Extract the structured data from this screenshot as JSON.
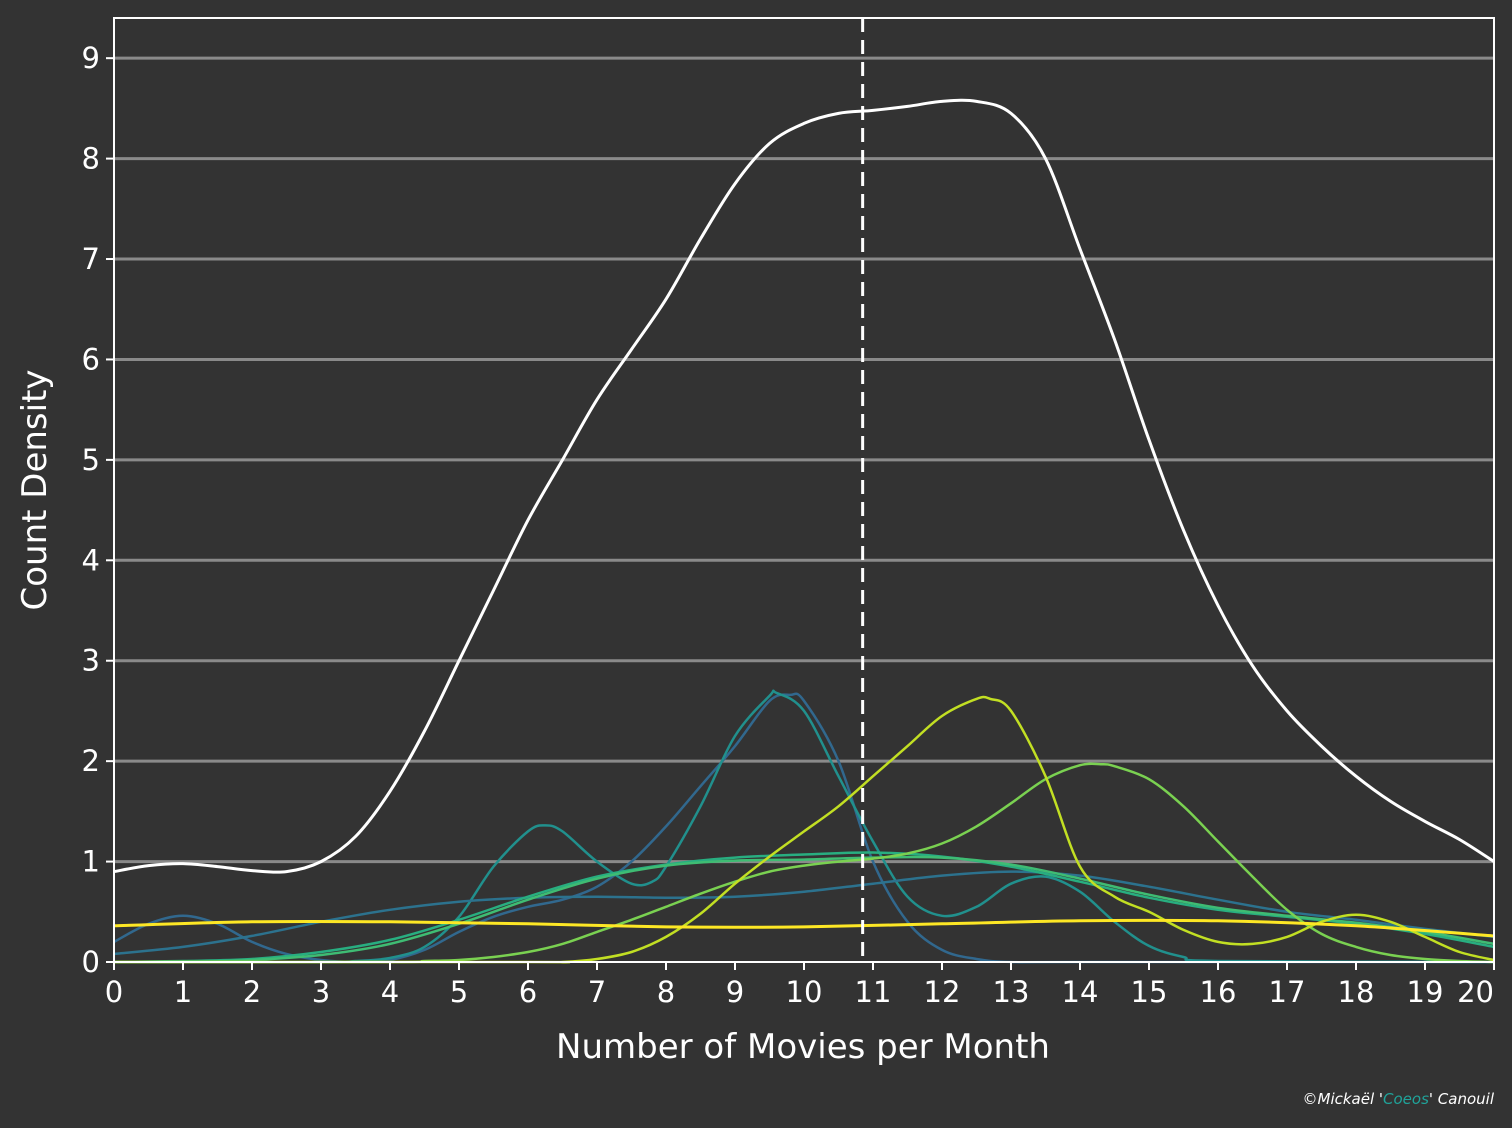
{
  "colors": {
    "background": "#333333",
    "grid": "#8a8a8a",
    "frame": "#ffffff",
    "accent": "#20a39a"
  },
  "credit": {
    "prefix": "©Mickaël '",
    "name": "Coeos",
    "suffix": "' Canouil"
  },
  "chart_data": {
    "type": "line",
    "title": "",
    "xlabel": "Number of Movies per Month",
    "ylabel": "Count Density",
    "xlim": [
      0,
      20
    ],
    "ylim": [
      0,
      9.4
    ],
    "xticks": [
      0,
      1,
      2,
      3,
      4,
      5,
      6,
      7,
      8,
      9,
      10,
      11,
      12,
      13,
      14,
      15,
      16,
      17,
      18,
      19,
      20
    ],
    "yticks": [
      0,
      1,
      2,
      3,
      4,
      5,
      6,
      7,
      8,
      9
    ],
    "grid": "horizontal",
    "legend": "none",
    "vline": {
      "x": 10.85,
      "style": "dashed",
      "color": "#ffffff"
    },
    "series": [
      {
        "color": "#ffffff",
        "width": 3,
        "points": [
          [
            0,
            0.9
          ],
          [
            0.5,
            0.96
          ],
          [
            1,
            0.98
          ],
          [
            1.5,
            0.95
          ],
          [
            2,
            0.91
          ],
          [
            2.5,
            0.9
          ],
          [
            3,
            1.0
          ],
          [
            3.5,
            1.25
          ],
          [
            4,
            1.7
          ],
          [
            4.5,
            2.3
          ],
          [
            5,
            3.0
          ],
          [
            5.5,
            3.7
          ],
          [
            6,
            4.4
          ],
          [
            6.5,
            5.0
          ],
          [
            7,
            5.6
          ],
          [
            7.5,
            6.1
          ],
          [
            8,
            6.6
          ],
          [
            8.5,
            7.2
          ],
          [
            9,
            7.75
          ],
          [
            9.5,
            8.15
          ],
          [
            10,
            8.35
          ],
          [
            10.5,
            8.45
          ],
          [
            11,
            8.48
          ],
          [
            11.5,
            8.52
          ],
          [
            12,
            8.57
          ],
          [
            12.5,
            8.57
          ],
          [
            13,
            8.45
          ],
          [
            13.5,
            8.0
          ],
          [
            14,
            7.1
          ],
          [
            14.5,
            6.2
          ],
          [
            15,
            5.2
          ],
          [
            15.5,
            4.3
          ],
          [
            16,
            3.55
          ],
          [
            16.5,
            2.95
          ],
          [
            17,
            2.5
          ],
          [
            17.5,
            2.15
          ],
          [
            18,
            1.85
          ],
          [
            18.5,
            1.6
          ],
          [
            19,
            1.4
          ],
          [
            19.5,
            1.22
          ],
          [
            20,
            1.0
          ]
        ]
      },
      {
        "color": "#31688e",
        "width": 2.5,
        "points": [
          [
            0,
            0.2
          ],
          [
            0.5,
            0.38
          ],
          [
            1,
            0.46
          ],
          [
            1.5,
            0.38
          ],
          [
            2,
            0.2
          ],
          [
            2.5,
            0.08
          ],
          [
            3,
            0.02
          ],
          [
            3.5,
            0.0
          ],
          [
            4,
            0.02
          ],
          [
            4.5,
            0.12
          ],
          [
            5,
            0.3
          ],
          [
            5.5,
            0.45
          ],
          [
            6,
            0.55
          ],
          [
            6.5,
            0.62
          ],
          [
            7,
            0.75
          ],
          [
            7.5,
            1.0
          ],
          [
            8,
            1.35
          ],
          [
            8.5,
            1.75
          ],
          [
            9,
            2.15
          ],
          [
            9.5,
            2.6
          ],
          [
            9.8,
            2.66
          ],
          [
            10,
            2.6
          ],
          [
            10.5,
            2.0
          ],
          [
            11,
            1.0
          ],
          [
            11.5,
            0.4
          ],
          [
            12,
            0.12
          ],
          [
            12.5,
            0.03
          ],
          [
            13,
            0.0
          ],
          [
            14,
            0.0
          ],
          [
            20,
            0.0
          ]
        ]
      },
      {
        "color": "#21908d",
        "width": 2.5,
        "points": [
          [
            0,
            0.0
          ],
          [
            3,
            0.0
          ],
          [
            3.5,
            0.01
          ],
          [
            4,
            0.04
          ],
          [
            4.5,
            0.15
          ],
          [
            5,
            0.45
          ],
          [
            5.5,
            0.95
          ],
          [
            6,
            1.3
          ],
          [
            6.25,
            1.36
          ],
          [
            6.5,
            1.3
          ],
          [
            7,
            1.0
          ],
          [
            7.5,
            0.78
          ],
          [
            7.8,
            0.8
          ],
          [
            8,
            0.95
          ],
          [
            8.5,
            1.55
          ],
          [
            9,
            2.25
          ],
          [
            9.5,
            2.65
          ],
          [
            9.6,
            2.68
          ],
          [
            10,
            2.5
          ],
          [
            10.5,
            1.85
          ],
          [
            11,
            1.2
          ],
          [
            11.5,
            0.65
          ],
          [
            12,
            0.46
          ],
          [
            12.5,
            0.55
          ],
          [
            13,
            0.78
          ],
          [
            13.5,
            0.85
          ],
          [
            14,
            0.7
          ],
          [
            14.5,
            0.4
          ],
          [
            15,
            0.16
          ],
          [
            15.5,
            0.05
          ],
          [
            16,
            0.01
          ],
          [
            20,
            0.0
          ]
        ]
      },
      {
        "color": "#2c728e",
        "width": 2.5,
        "points": [
          [
            0,
            0.08
          ],
          [
            1,
            0.15
          ],
          [
            2,
            0.26
          ],
          [
            3,
            0.4
          ],
          [
            4,
            0.52
          ],
          [
            5,
            0.6
          ],
          [
            6,
            0.64
          ],
          [
            7,
            0.65
          ],
          [
            8,
            0.64
          ],
          [
            9,
            0.65
          ],
          [
            10,
            0.7
          ],
          [
            11,
            0.78
          ],
          [
            12,
            0.86
          ],
          [
            13,
            0.9
          ],
          [
            14,
            0.86
          ],
          [
            15,
            0.75
          ],
          [
            16,
            0.62
          ],
          [
            17,
            0.5
          ],
          [
            18,
            0.42
          ],
          [
            19,
            0.33
          ],
          [
            20,
            0.25
          ]
        ]
      },
      {
        "color": "#28ae80",
        "width": 2.5,
        "points": [
          [
            0,
            0.0
          ],
          [
            1,
            0.01
          ],
          [
            2,
            0.03
          ],
          [
            3,
            0.1
          ],
          [
            4,
            0.22
          ],
          [
            5,
            0.42
          ],
          [
            6,
            0.65
          ],
          [
            7,
            0.85
          ],
          [
            8,
            0.97
          ],
          [
            9,
            1.04
          ],
          [
            10,
            1.07
          ],
          [
            11,
            1.09
          ],
          [
            12,
            1.05
          ],
          [
            13,
            0.95
          ],
          [
            14,
            0.8
          ],
          [
            15,
            0.64
          ],
          [
            16,
            0.52
          ],
          [
            17,
            0.45
          ],
          [
            18,
            0.38
          ],
          [
            19,
            0.28
          ],
          [
            20,
            0.15
          ]
        ]
      },
      {
        "color": "#3fbc73",
        "width": 2.5,
        "points": [
          [
            0,
            0.0
          ],
          [
            1,
            0.0
          ],
          [
            2,
            0.02
          ],
          [
            3,
            0.07
          ],
          [
            4,
            0.18
          ],
          [
            5,
            0.38
          ],
          [
            6,
            0.62
          ],
          [
            7,
            0.83
          ],
          [
            8,
            0.96
          ],
          [
            9,
            1.01
          ],
          [
            10,
            1.02
          ],
          [
            11,
            1.04
          ],
          [
            12,
            1.04
          ],
          [
            13,
            0.97
          ],
          [
            14,
            0.83
          ],
          [
            15,
            0.67
          ],
          [
            16,
            0.54
          ],
          [
            17,
            0.46
          ],
          [
            18,
            0.39
          ],
          [
            19,
            0.3
          ],
          [
            20,
            0.18
          ]
        ]
      },
      {
        "color": "#7ad151",
        "width": 2.5,
        "points": [
          [
            0,
            0.0
          ],
          [
            4,
            0.0
          ],
          [
            4.5,
            0.01
          ],
          [
            5,
            0.02
          ],
          [
            5.5,
            0.05
          ],
          [
            6,
            0.1
          ],
          [
            6.5,
            0.18
          ],
          [
            7,
            0.3
          ],
          [
            7.5,
            0.42
          ],
          [
            8,
            0.55
          ],
          [
            8.5,
            0.68
          ],
          [
            9,
            0.8
          ],
          [
            9.5,
            0.9
          ],
          [
            10,
            0.96
          ],
          [
            10.5,
            1.0
          ],
          [
            11,
            1.03
          ],
          [
            11.5,
            1.08
          ],
          [
            12,
            1.18
          ],
          [
            12.5,
            1.35
          ],
          [
            13,
            1.58
          ],
          [
            13.5,
            1.82
          ],
          [
            14,
            1.96
          ],
          [
            14.3,
            1.97
          ],
          [
            14.5,
            1.95
          ],
          [
            15,
            1.82
          ],
          [
            15.5,
            1.55
          ],
          [
            16,
            1.2
          ],
          [
            16.5,
            0.85
          ],
          [
            17,
            0.52
          ],
          [
            17.5,
            0.28
          ],
          [
            18,
            0.15
          ],
          [
            18.5,
            0.07
          ],
          [
            19,
            0.03
          ],
          [
            19.5,
            0.01
          ],
          [
            20,
            0.0
          ]
        ]
      },
      {
        "color": "#c2df23",
        "width": 2.5,
        "points": [
          [
            0,
            0.0
          ],
          [
            6,
            0.0
          ],
          [
            6.5,
            0.0
          ],
          [
            7,
            0.03
          ],
          [
            7.5,
            0.1
          ],
          [
            8,
            0.25
          ],
          [
            8.5,
            0.48
          ],
          [
            9,
            0.78
          ],
          [
            9.5,
            1.05
          ],
          [
            10,
            1.3
          ],
          [
            10.5,
            1.55
          ],
          [
            11,
            1.85
          ],
          [
            11.5,
            2.15
          ],
          [
            12,
            2.45
          ],
          [
            12.5,
            2.62
          ],
          [
            12.7,
            2.62
          ],
          [
            13,
            2.5
          ],
          [
            13.5,
            1.85
          ],
          [
            14,
            0.95
          ],
          [
            14.5,
            0.65
          ],
          [
            15,
            0.5
          ],
          [
            15.5,
            0.32
          ],
          [
            16,
            0.2
          ],
          [
            16.5,
            0.18
          ],
          [
            17,
            0.25
          ],
          [
            17.5,
            0.4
          ],
          [
            18,
            0.47
          ],
          [
            18.5,
            0.4
          ],
          [
            19,
            0.25
          ],
          [
            19.5,
            0.1
          ],
          [
            20,
            0.02
          ]
        ]
      },
      {
        "color": "#fde725",
        "width": 3,
        "points": [
          [
            0,
            0.36
          ],
          [
            2,
            0.4
          ],
          [
            4,
            0.4
          ],
          [
            6,
            0.38
          ],
          [
            8,
            0.35
          ],
          [
            10,
            0.35
          ],
          [
            12,
            0.38
          ],
          [
            14,
            0.41
          ],
          [
            16,
            0.41
          ],
          [
            18,
            0.36
          ],
          [
            20,
            0.26
          ]
        ]
      }
    ]
  }
}
